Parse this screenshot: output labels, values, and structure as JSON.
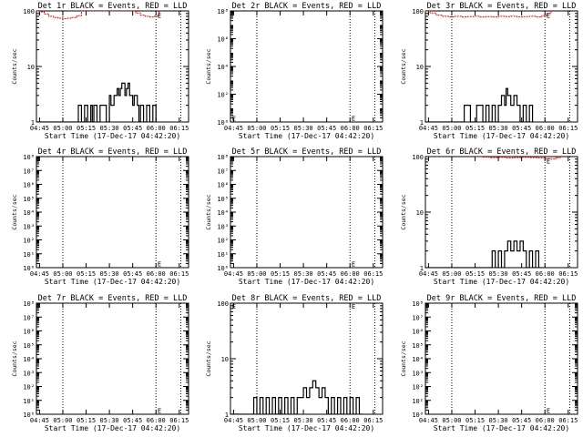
{
  "figure": {
    "background": "#ffffff",
    "events_color": "#000000",
    "lld_color": "#ff0000"
  },
  "chart_data": [
    {
      "type": "line",
      "title": "Det 1r BLACK = Events, RED = LLD",
      "xlabel": "Start Time (17-Dec-17 04:42:20)",
      "ylabel": "Counts/sec",
      "xtick_labels": [
        "04:45",
        "05:00",
        "05:15",
        "05:30",
        "05:45",
        "06:00",
        "06:15"
      ],
      "xtick_minutes": [
        45,
        60,
        75,
        90,
        105,
        120,
        135
      ],
      "xlim_minutes": [
        43,
        141
      ],
      "yscale": "log",
      "ylim": [
        1,
        100
      ],
      "ytick_labels": [
        "1",
        "10",
        "100"
      ],
      "yticks": [
        1,
        10,
        100
      ],
      "vlines_minutes": [
        60,
        120,
        136
      ],
      "series": [
        {
          "role": "events",
          "color": "#000000",
          "x": [
            43,
            60,
            70,
            72,
            74,
            76,
            78,
            79,
            80,
            82,
            84,
            86,
            88,
            90,
            91,
            93,
            95,
            96,
            97,
            98,
            100,
            101,
            102,
            103,
            105,
            106,
            108,
            109,
            110,
            112,
            114,
            116,
            118,
            120
          ],
          "y": [
            1,
            1,
            2,
            1,
            2,
            1,
            2,
            1,
            2,
            1,
            2,
            2,
            1,
            3,
            2,
            3,
            4,
            3,
            4,
            5,
            3,
            4,
            5,
            3,
            2,
            3,
            2,
            1,
            2,
            1,
            2,
            1,
            2,
            1
          ]
        },
        {
          "role": "lld",
          "color": "#ff0000",
          "x": [
            43,
            45,
            48,
            51,
            54,
            57,
            60,
            63,
            66,
            69,
            72,
            104,
            107,
            110,
            113,
            116,
            119,
            122
          ],
          "y": [
            100,
            96,
            88,
            80,
            76,
            74,
            73,
            74,
            76,
            82,
            100,
            100,
            92,
            84,
            80,
            78,
            80,
            100
          ]
        }
      ],
      "annotation": "E",
      "annotation_at": [
        121,
        85
      ]
    },
    {
      "type": "line",
      "title": "Det 2r BLACK = Events, RED = LLD",
      "xlabel": "Start Time (17-Dec-17 04:42:20)",
      "ylabel": "Counts/sec",
      "xtick_labels": [
        "04:45",
        "05:00",
        "05:15",
        "05:30",
        "05:45",
        "06:00",
        "06:15"
      ],
      "xtick_minutes": [
        45,
        60,
        75,
        90,
        105,
        120,
        135
      ],
      "xlim_minutes": [
        43,
        141
      ],
      "yscale": "log",
      "ylim": [
        1,
        100000000
      ],
      "ytick_labels": [
        "10⁰",
        "10²",
        "10⁴",
        "10⁶",
        "10⁸"
      ],
      "yticks": [
        1,
        100,
        10000,
        1000000,
        100000000
      ],
      "vlines_minutes": [
        60,
        120,
        136
      ],
      "series": [],
      "annotations": [
        {
          "text": "E",
          "at": [
            44,
            2
          ]
        },
        {
          "text": "E",
          "at": [
            121,
            2
          ]
        }
      ]
    },
    {
      "type": "line",
      "title": "Det 3r BLACK = Events, RED = LLD",
      "xlabel": "Start Time (17-Dec-17 04:42:20)",
      "ylabel": "Counts/sec",
      "xtick_labels": [
        "04:45",
        "05:00",
        "05:15",
        "05:30",
        "05:45",
        "06:00",
        "06:15"
      ],
      "xtick_minutes": [
        45,
        60,
        75,
        90,
        105,
        120,
        135
      ],
      "xlim_minutes": [
        43,
        141
      ],
      "yscale": "log",
      "ylim": [
        1,
        100
      ],
      "ytick_labels": [
        "1",
        "10",
        "100"
      ],
      "yticks": [
        1,
        10,
        100
      ],
      "vlines_minutes": [
        60,
        120,
        136
      ],
      "series": [
        {
          "role": "events",
          "color": "#000000",
          "x": [
            43,
            64,
            68,
            72,
            76,
            80,
            82,
            84,
            86,
            88,
            90,
            92,
            94,
            95,
            96,
            98,
            100,
            102,
            104,
            106,
            108,
            110,
            112
          ],
          "y": [
            1,
            1,
            2,
            1,
            2,
            1,
            2,
            1,
            2,
            1,
            2,
            3,
            2,
            4,
            3,
            2,
            3,
            2,
            1,
            2,
            1,
            2,
            1
          ]
        },
        {
          "role": "lld",
          "color": "#ff0000",
          "x": [
            43,
            46,
            50,
            54,
            58,
            62,
            66,
            70,
            74,
            78,
            82,
            86,
            90,
            94,
            98,
            102,
            106,
            110,
            114,
            118,
            121,
            124
          ],
          "y": [
            100,
            92,
            84,
            80,
            78,
            80,
            78,
            79,
            80,
            78,
            79,
            78,
            80,
            79,
            80,
            78,
            79,
            80,
            78,
            82,
            90,
            100
          ]
        }
      ],
      "annotation": "E",
      "annotation_at": [
        121,
        85
      ]
    },
    {
      "type": "line",
      "title": "Det 4r BLACK = Events, RED = LLD",
      "xlabel": "Start Time (17-Dec-17 04:42:20)",
      "ylabel": "Counts/sec",
      "xtick_labels": [
        "04:45",
        "05:00",
        "05:15",
        "05:30",
        "05:45",
        "06:00",
        "06:15"
      ],
      "xtick_minutes": [
        45,
        60,
        75,
        90,
        105,
        120,
        135
      ],
      "xlim_minutes": [
        43,
        141
      ],
      "yscale": "log",
      "ylim": [
        1,
        100000000
      ],
      "ytick_labels": [
        "10⁰",
        "10¹",
        "10²",
        "10³",
        "10⁴",
        "10⁵",
        "10⁶",
        "10⁷",
        "10⁸"
      ],
      "yticks": [
        1,
        10,
        100,
        1000,
        10000,
        100000,
        1000000,
        10000000,
        100000000
      ],
      "vlines_minutes": [
        60,
        120,
        136
      ],
      "series": [],
      "annotations": [
        {
          "text": "E",
          "at": [
            121,
            2
          ]
        }
      ]
    },
    {
      "type": "line",
      "title": "Det 5r BLACK = Events, RED = LLD",
      "xlabel": "Start Time (17-Dec-17 04:42:20)",
      "ylabel": "Counts/sec",
      "xtick_labels": [
        "04:45",
        "05:00",
        "05:15",
        "05:30",
        "05:45",
        "06:00",
        "06:15"
      ],
      "xtick_minutes": [
        45,
        60,
        75,
        90,
        105,
        120,
        135
      ],
      "xlim_minutes": [
        43,
        141
      ],
      "yscale": "log",
      "ylim": [
        1,
        100000000
      ],
      "ytick_labels": [
        "10⁰",
        "10¹",
        "10²",
        "10³",
        "10⁴",
        "10⁵",
        "10⁶",
        "10⁷",
        "10⁸"
      ],
      "yticks": [
        1,
        10,
        100,
        1000,
        10000,
        100000,
        1000000,
        10000000,
        100000000
      ],
      "vlines_minutes": [
        60,
        120,
        136
      ],
      "series": [],
      "annotations": [
        {
          "text": "E",
          "at": [
            121,
            2
          ]
        }
      ]
    },
    {
      "type": "line",
      "title": "Det 6r BLACK = Events, RED = LLD",
      "xlabel": "Start Time (17-Dec-17 04:42:20)",
      "ylabel": "Counts/sec",
      "xtick_labels": [
        "04:45",
        "05:00",
        "05:15",
        "05:30",
        "05:45",
        "06:00",
        "06:15"
      ],
      "xtick_minutes": [
        45,
        60,
        75,
        90,
        105,
        120,
        135
      ],
      "xlim_minutes": [
        43,
        141
      ],
      "yscale": "log",
      "ylim": [
        1,
        100
      ],
      "ytick_labels": [
        "1",
        "10",
        "100"
      ],
      "yticks": [
        1,
        10,
        100
      ],
      "vlines_minutes": [
        60,
        120,
        136
      ],
      "series": [
        {
          "role": "events",
          "color": "#000000",
          "x": [
            43,
            84,
            86,
            88,
            90,
            92,
            94,
            96,
            98,
            100,
            102,
            104,
            106,
            108,
            110,
            112,
            114,
            116,
            118
          ],
          "y": [
            1,
            1,
            2,
            1,
            2,
            1,
            2,
            3,
            2,
            3,
            2,
            3,
            2,
            1,
            2,
            1,
            2,
            1,
            1
          ]
        },
        {
          "role": "lld",
          "color": "#ff0000",
          "x": [
            75,
            80,
            85,
            90,
            95,
            100,
            105,
            110,
            115,
            120,
            124,
            127,
            130
          ],
          "y": [
            100,
            98,
            96,
            97,
            95,
            96,
            97,
            96,
            95,
            92,
            90,
            96,
            100
          ]
        }
      ],
      "annotation": "E",
      "annotation_at": [
        121,
        85
      ]
    },
    {
      "type": "line",
      "title": "Det 7r BLACK = Events, RED = LLD",
      "xlabel": "Start Time (17-Dec-17 04:42:20)",
      "ylabel": "Counts/sec",
      "xtick_labels": [
        "04:45",
        "05:00",
        "05:15",
        "05:30",
        "05:45",
        "06:00",
        "06:15"
      ],
      "xtick_minutes": [
        45,
        60,
        75,
        90,
        105,
        120,
        135
      ],
      "xlim_minutes": [
        43,
        141
      ],
      "yscale": "log",
      "ylim": [
        1,
        100000000
      ],
      "ytick_labels": [
        "10⁰",
        "10¹",
        "10²",
        "10³",
        "10⁴",
        "10⁵",
        "10⁶",
        "10⁷",
        "10⁸"
      ],
      "yticks": [
        1,
        10,
        100,
        1000,
        10000,
        100000,
        1000000,
        10000000,
        100000000
      ],
      "vlines_minutes": [
        60,
        120,
        136
      ],
      "series": [],
      "annotations": [
        {
          "text": "E",
          "at": [
            121,
            2
          ]
        }
      ]
    },
    {
      "type": "line",
      "title": "Det 8r BLACK = Events, RED = LLD",
      "xlabel": "Start Time (17-Dec-17 04:42:20)",
      "ylabel": "Counts/sec",
      "xtick_labels": [
        "04:45",
        "05:00",
        "05:15",
        "05:30",
        "05:45",
        "06:00",
        "06:15"
      ],
      "xtick_minutes": [
        45,
        60,
        75,
        90,
        105,
        120,
        135
      ],
      "xlim_minutes": [
        43,
        141
      ],
      "yscale": "log",
      "ylim": [
        1,
        100
      ],
      "ytick_labels": [
        "1",
        "10",
        "100"
      ],
      "yticks": [
        1,
        10,
        100
      ],
      "vlines_minutes": [
        60,
        120,
        136
      ],
      "series": [
        {
          "role": "events",
          "color": "#000000",
          "x": [
            43,
            58,
            60,
            62,
            64,
            66,
            68,
            70,
            72,
            74,
            76,
            78,
            80,
            82,
            84,
            86,
            88,
            90,
            92,
            94,
            96,
            98,
            100,
            102,
            104,
            106,
            108,
            110,
            112,
            114,
            116,
            118,
            120,
            122,
            124,
            126,
            128
          ],
          "y": [
            1,
            2,
            1,
            2,
            1,
            2,
            1,
            2,
            1,
            2,
            1,
            2,
            1,
            2,
            1,
            2,
            2,
            3,
            2,
            3,
            4,
            3,
            2,
            3,
            2,
            1,
            2,
            1,
            2,
            1,
            2,
            1,
            2,
            1,
            2,
            1,
            1
          ]
        }
      ],
      "annotations": [
        {
          "text": "E",
          "at": [
            44,
            90
          ]
        },
        {
          "text": "E",
          "at": [
            121,
            90
          ]
        }
      ]
    },
    {
      "type": "line",
      "title": "Det 9r BLACK = Events, RED = LLD",
      "xlabel": "Start Time (17-Dec-17 04:42:20)",
      "ylabel": "Counts/sec",
      "xtick_labels": [
        "04:45",
        "05:00",
        "05:15",
        "05:30",
        "05:45",
        "06:00",
        "06:15"
      ],
      "xtick_minutes": [
        45,
        60,
        75,
        90,
        105,
        120,
        135
      ],
      "xlim_minutes": [
        43,
        141
      ],
      "yscale": "log",
      "ylim": [
        1,
        100000000
      ],
      "ytick_labels": [
        "10⁰",
        "10¹",
        "10²",
        "10³",
        "10⁴",
        "10⁵",
        "10⁶",
        "10⁷",
        "10⁸"
      ],
      "yticks": [
        1,
        10,
        100,
        1000,
        10000,
        100000,
        1000000,
        10000000,
        100000000
      ],
      "vlines_minutes": [
        60,
        120,
        136
      ],
      "series": [],
      "annotations": [
        {
          "text": "E",
          "at": [
            121,
            2
          ]
        }
      ]
    }
  ]
}
